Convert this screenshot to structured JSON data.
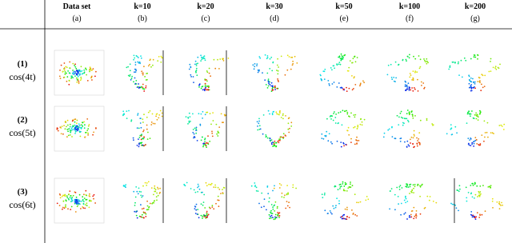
{
  "columns": [
    {
      "header": "Data set",
      "label": "(a)"
    },
    {
      "header": "k=10",
      "label": "(b)"
    },
    {
      "header": "k=20",
      "label": "(c)"
    },
    {
      "header": "k=30",
      "label": "(d)"
    },
    {
      "header": "k=50",
      "label": "(e)"
    },
    {
      "header": "k=100",
      "label": "(f)"
    },
    {
      "header": "k=200",
      "label": "(g)"
    }
  ],
  "rows": [
    {
      "label": "(1)",
      "formula": "cos(4t)"
    },
    {
      "label": "(2)",
      "formula": "cos(5t)"
    },
    {
      "label": "(3)",
      "formula": "cos(6t)"
    }
  ]
}
